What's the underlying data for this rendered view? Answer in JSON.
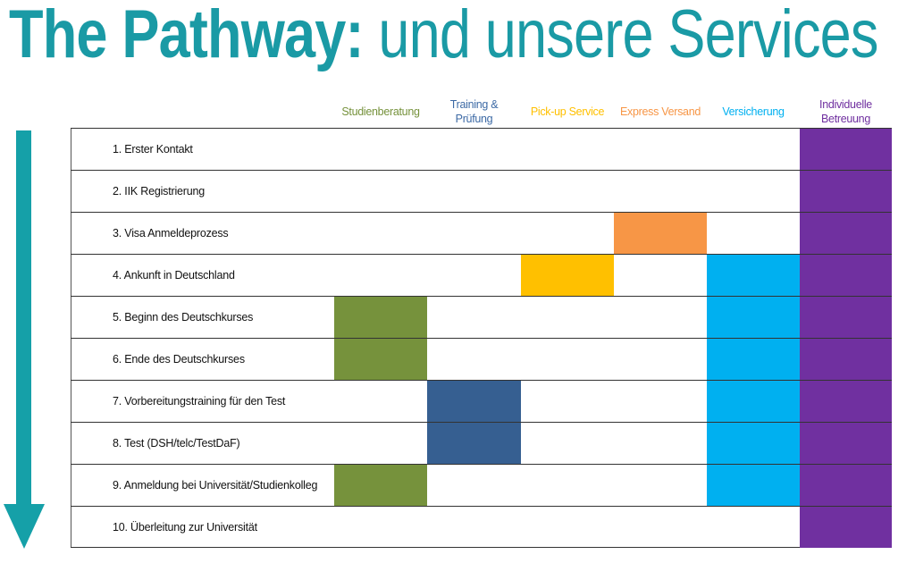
{
  "title": {
    "bold": "The Pathway:",
    "light": " und unsere Services",
    "color": "#1a9aa5"
  },
  "services": [
    {
      "key": "studien",
      "label": "Studienberatung",
      "color": "#76923c",
      "text_color": "#76923c"
    },
    {
      "key": "training",
      "label": "Training & Prüfung",
      "color": "#365f91",
      "text_color": "#3d6aa5"
    },
    {
      "key": "pickup",
      "label": "Pick-up Service",
      "color": "#ffc000",
      "text_color": "#ffc000"
    },
    {
      "key": "express",
      "label": "Express Versand",
      "color": "#f79646",
      "text_color": "#f79646"
    },
    {
      "key": "versich",
      "label": "Versicherung",
      "color": "#00b0f0",
      "text_color": "#00b0f0"
    },
    {
      "key": "indiv",
      "label": "Individuelle Betreuung",
      "color": "#7030a0",
      "text_color": "#7030a0"
    }
  ],
  "steps": [
    {
      "label": "1. Erster Kontakt",
      "services": [
        "indiv"
      ]
    },
    {
      "label": "2. IIK Registrierung",
      "services": [
        "indiv"
      ]
    },
    {
      "label": "3. Visa Anmeldeprozess",
      "services": [
        "express",
        "indiv"
      ]
    },
    {
      "label": "4. Ankunft in Deutschland",
      "services": [
        "pickup",
        "versich",
        "indiv"
      ]
    },
    {
      "label": "5. Beginn des Deutschkurses",
      "services": [
        "studien",
        "versich",
        "indiv"
      ]
    },
    {
      "label": "6. Ende des Deutschkurses",
      "services": [
        "studien",
        "versich",
        "indiv"
      ]
    },
    {
      "label": "7. Vorbereitungstraining für den Test",
      "services": [
        "training",
        "versich",
        "indiv"
      ]
    },
    {
      "label": "8. Test (DSH/telc/TestDaF)",
      "services": [
        "training",
        "versich",
        "indiv"
      ]
    },
    {
      "label": "9. Anmeldung bei Universität/Studienkolleg",
      "services": [
        "studien",
        "versich",
        "indiv"
      ]
    },
    {
      "label": "10. Überleitung zur Universität",
      "services": [
        "indiv"
      ]
    }
  ],
  "arrow_color": "#15a0a8"
}
